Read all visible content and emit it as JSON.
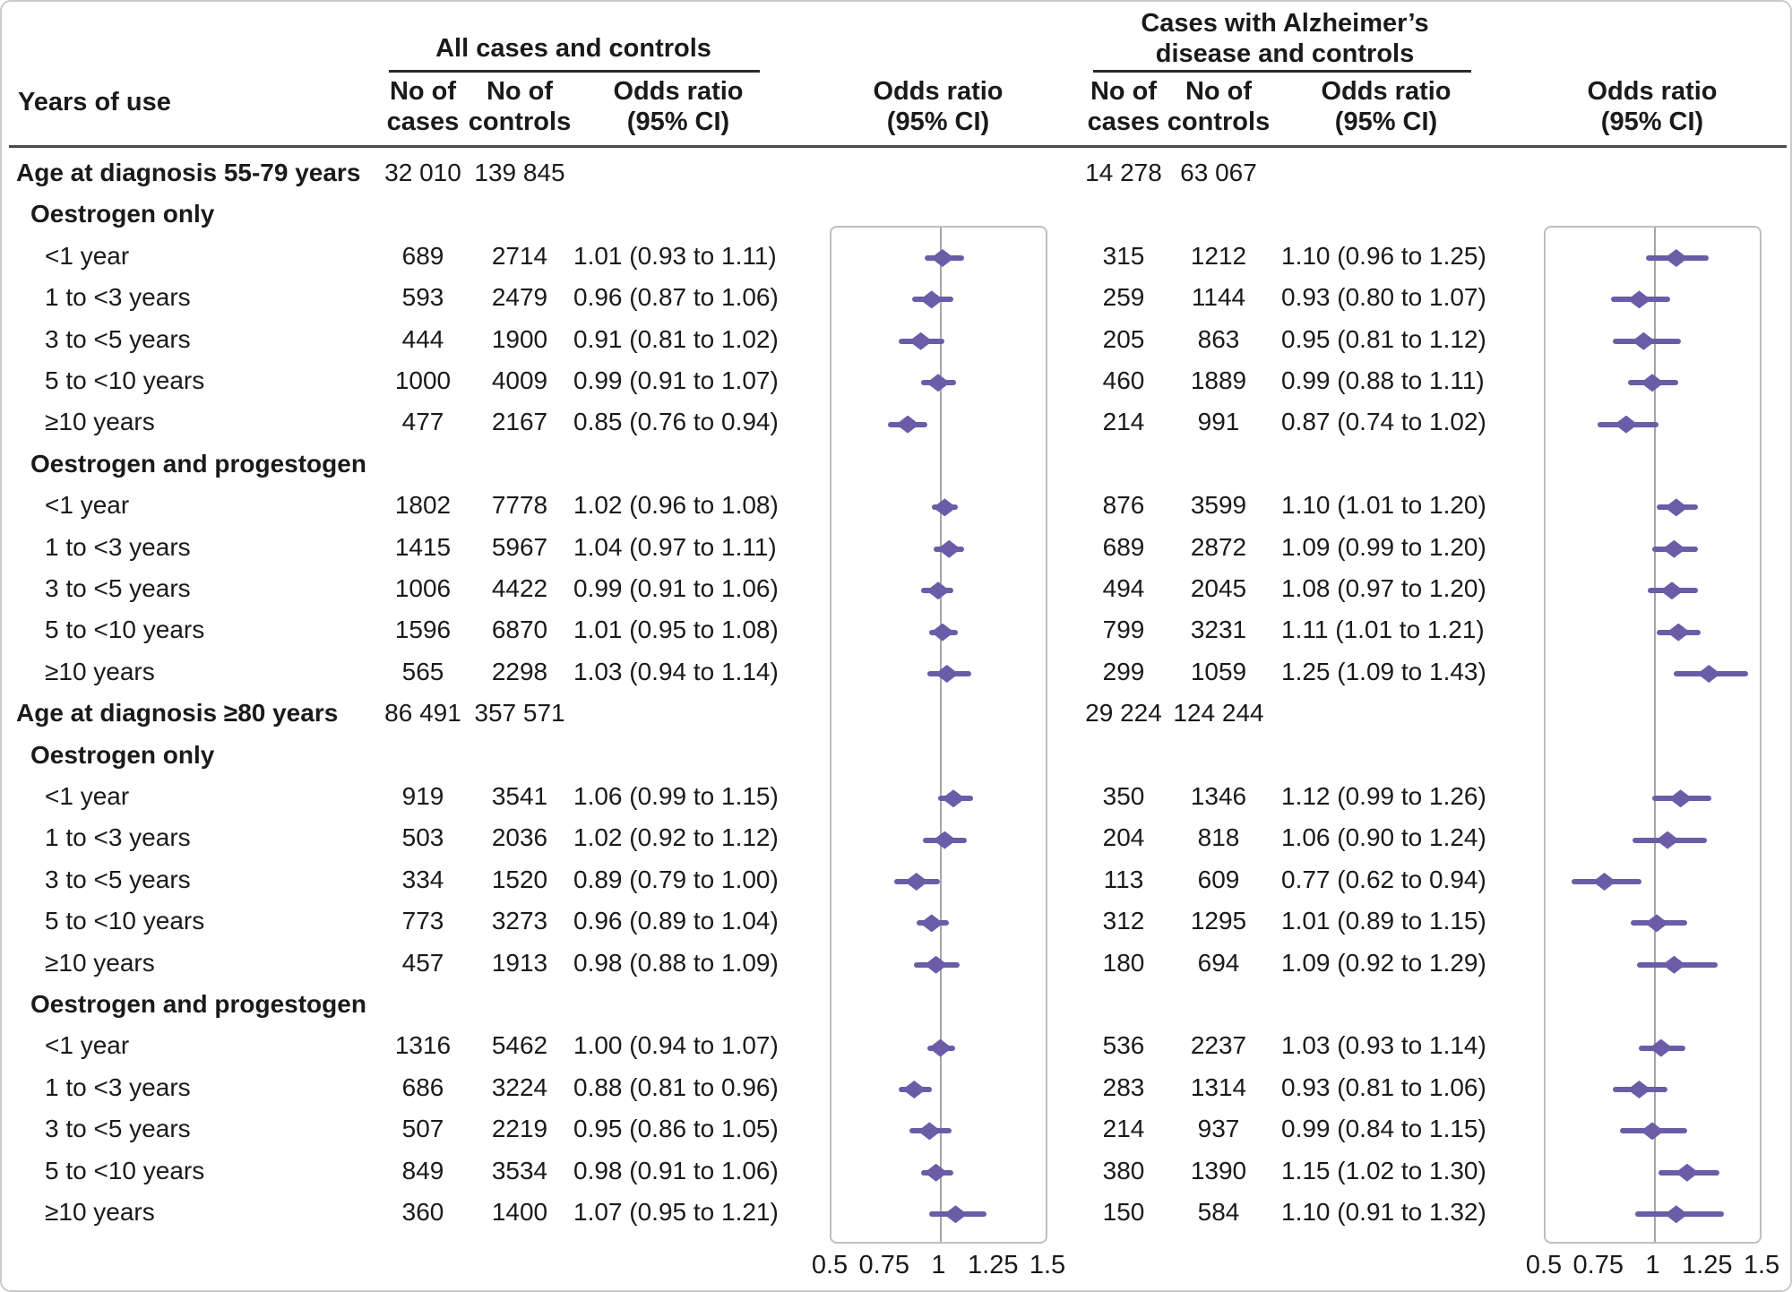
{
  "colors": {
    "diamond": "#6b5ca8",
    "ci": "#6b5ca8",
    "ref_line": "#a3a5a8",
    "box_border": "#bdbfc1",
    "rule": "#4a4a4c",
    "text": "#1a1a1a"
  },
  "header": {
    "years_of_use": "Years of use",
    "group_all": "All cases and controls",
    "group_alz_line1": "Cases with Alzheimer’s",
    "group_alz_line2": "disease and controls",
    "cases_line1": "No of",
    "cases_line2": "cases",
    "controls_line1": "No of",
    "controls_line2": "controls",
    "or_line1": "Odds ratio",
    "or_line2": "(95% CI)"
  },
  "chart_data": {
    "type": "forest",
    "title": "",
    "xlabel": "Odds ratio (95% CI)",
    "axis_range": [
      0.5,
      1.5
    ],
    "reference_line": 1,
    "axis_ticks": [
      0.5,
      0.75,
      1,
      1.25,
      1.5
    ],
    "axis_tick_labels": [
      "0.5",
      "0.75",
      "1",
      "1.25",
      "1.5"
    ],
    "series_names": [
      "All cases and controls",
      "Cases with Alzheimer’s disease and controls"
    ],
    "rows": [
      {
        "kind": "section",
        "label": "Age at diagnosis 55-79 years",
        "all": {
          "cases": "32 010",
          "controls": "139 845"
        },
        "alz": {
          "cases": "14 278",
          "controls": "63 067"
        }
      },
      {
        "kind": "subhead",
        "label": "Oestrogen only"
      },
      {
        "kind": "data",
        "label": "<1 year",
        "all": {
          "cases": "689",
          "controls": "2714",
          "or": 1.01,
          "lo": 0.93,
          "hi": 1.11,
          "text": "1.01 (0.93 to 1.11)"
        },
        "alz": {
          "cases": "315",
          "controls": "1212",
          "or": 1.1,
          "lo": 0.96,
          "hi": 1.25,
          "text": "1.10 (0.96 to 1.25)"
        }
      },
      {
        "kind": "data",
        "label": "1 to <3 years",
        "all": {
          "cases": "593",
          "controls": "2479",
          "or": 0.96,
          "lo": 0.87,
          "hi": 1.06,
          "text": "0.96 (0.87 to 1.06)"
        },
        "alz": {
          "cases": "259",
          "controls": "1144",
          "or": 0.93,
          "lo": 0.8,
          "hi": 1.07,
          "text": "0.93 (0.80 to 1.07)"
        }
      },
      {
        "kind": "data",
        "label": "3 to <5 years",
        "all": {
          "cases": "444",
          "controls": "1900",
          "or": 0.91,
          "lo": 0.81,
          "hi": 1.02,
          "text": "0.91 (0.81 to 1.02)"
        },
        "alz": {
          "cases": "205",
          "controls": "863",
          "or": 0.95,
          "lo": 0.81,
          "hi": 1.12,
          "text": "0.95 (0.81 to 1.12)"
        }
      },
      {
        "kind": "data",
        "label": "5 to <10 years",
        "all": {
          "cases": "1000",
          "controls": "4009",
          "or": 0.99,
          "lo": 0.91,
          "hi": 1.07,
          "text": "0.99 (0.91 to 1.07)"
        },
        "alz": {
          "cases": "460",
          "controls": "1889",
          "or": 0.99,
          "lo": 0.88,
          "hi": 1.11,
          "text": "0.99 (0.88 to 1.11)"
        }
      },
      {
        "kind": "data",
        "label": "≥10 years",
        "all": {
          "cases": "477",
          "controls": "2167",
          "or": 0.85,
          "lo": 0.76,
          "hi": 0.94,
          "text": "0.85 (0.76 to 0.94)"
        },
        "alz": {
          "cases": "214",
          "controls": "991",
          "or": 0.87,
          "lo": 0.74,
          "hi": 1.02,
          "text": "0.87 (0.74 to 1.02)"
        }
      },
      {
        "kind": "subhead",
        "label": "Oestrogen and progestogen"
      },
      {
        "kind": "data",
        "label": "<1 year",
        "all": {
          "cases": "1802",
          "controls": "7778",
          "or": 1.02,
          "lo": 0.96,
          "hi": 1.08,
          "text": "1.02 (0.96 to 1.08)"
        },
        "alz": {
          "cases": "876",
          "controls": "3599",
          "or": 1.1,
          "lo": 1.01,
          "hi": 1.2,
          "text": "1.10 (1.01 to 1.20)"
        }
      },
      {
        "kind": "data",
        "label": "1 to <3 years",
        "all": {
          "cases": "1415",
          "controls": "5967",
          "or": 1.04,
          "lo": 0.97,
          "hi": 1.11,
          "text": "1.04 (0.97 to 1.11)"
        },
        "alz": {
          "cases": "689",
          "controls": "2872",
          "or": 1.09,
          "lo": 0.99,
          "hi": 1.2,
          "text": "1.09 (0.99 to 1.20)"
        }
      },
      {
        "kind": "data",
        "label": "3 to <5 years",
        "all": {
          "cases": "1006",
          "controls": "4422",
          "or": 0.99,
          "lo": 0.91,
          "hi": 1.06,
          "text": "0.99 (0.91 to 1.06)"
        },
        "alz": {
          "cases": "494",
          "controls": "2045",
          "or": 1.08,
          "lo": 0.97,
          "hi": 1.2,
          "text": "1.08 (0.97 to 1.20)"
        }
      },
      {
        "kind": "data",
        "label": "5 to <10 years",
        "all": {
          "cases": "1596",
          "controls": "6870",
          "or": 1.01,
          "lo": 0.95,
          "hi": 1.08,
          "text": "1.01 (0.95 to 1.08)"
        },
        "alz": {
          "cases": "799",
          "controls": "3231",
          "or": 1.11,
          "lo": 1.01,
          "hi": 1.21,
          "text": "1.11 (1.01 to 1.21)"
        }
      },
      {
        "kind": "data",
        "label": "≥10 years",
        "all": {
          "cases": "565",
          "controls": "2298",
          "or": 1.03,
          "lo": 0.94,
          "hi": 1.14,
          "text": "1.03 (0.94 to 1.14)"
        },
        "alz": {
          "cases": "299",
          "controls": "1059",
          "or": 1.25,
          "lo": 1.09,
          "hi": 1.43,
          "text": "1.25 (1.09 to 1.43)"
        }
      },
      {
        "kind": "section",
        "label": "Age at diagnosis ≥80 years",
        "all": {
          "cases": "86 491",
          "controls": "357 571"
        },
        "alz": {
          "cases": "29 224",
          "controls": "124 244"
        }
      },
      {
        "kind": "subhead",
        "label": "Oestrogen only"
      },
      {
        "kind": "data",
        "label": "<1 year",
        "all": {
          "cases": "919",
          "controls": "3541",
          "or": 1.06,
          "lo": 0.99,
          "hi": 1.15,
          "text": "1.06 (0.99 to 1.15)"
        },
        "alz": {
          "cases": "350",
          "controls": "1346",
          "or": 1.12,
          "lo": 0.99,
          "hi": 1.26,
          "text": "1.12 (0.99 to 1.26)"
        }
      },
      {
        "kind": "data",
        "label": "1 to <3 years",
        "all": {
          "cases": "503",
          "controls": "2036",
          "or": 1.02,
          "lo": 0.92,
          "hi": 1.12,
          "text": "1.02 (0.92 to 1.12)"
        },
        "alz": {
          "cases": "204",
          "controls": "818",
          "or": 1.06,
          "lo": 0.9,
          "hi": 1.24,
          "text": "1.06 (0.90 to 1.24)"
        }
      },
      {
        "kind": "data",
        "label": "3 to <5 years",
        "all": {
          "cases": "334",
          "controls": "1520",
          "or": 0.89,
          "lo": 0.79,
          "hi": 1.0,
          "text": "0.89 (0.79 to 1.00)"
        },
        "alz": {
          "cases": "113",
          "controls": "609",
          "or": 0.77,
          "lo": 0.62,
          "hi": 0.94,
          "text": "0.77 (0.62 to 0.94)"
        }
      },
      {
        "kind": "data",
        "label": "5 to <10 years",
        "all": {
          "cases": "773",
          "controls": "3273",
          "or": 0.96,
          "lo": 0.89,
          "hi": 1.04,
          "text": "0.96 (0.89 to 1.04)"
        },
        "alz": {
          "cases": "312",
          "controls": "1295",
          "or": 1.01,
          "lo": 0.89,
          "hi": 1.15,
          "text": "1.01 (0.89 to 1.15)"
        }
      },
      {
        "kind": "data",
        "label": "≥10 years",
        "all": {
          "cases": "457",
          "controls": "1913",
          "or": 0.98,
          "lo": 0.88,
          "hi": 1.09,
          "text": "0.98 (0.88 to 1.09)"
        },
        "alz": {
          "cases": "180",
          "controls": "694",
          "or": 1.09,
          "lo": 0.92,
          "hi": 1.29,
          "text": "1.09 (0.92 to 1.29)"
        }
      },
      {
        "kind": "subhead",
        "label": "Oestrogen and progestogen"
      },
      {
        "kind": "data",
        "label": "<1 year",
        "all": {
          "cases": "1316",
          "controls": "5462",
          "or": 1.0,
          "lo": 0.94,
          "hi": 1.07,
          "text": "1.00 (0.94 to 1.07)"
        },
        "alz": {
          "cases": "536",
          "controls": "2237",
          "or": 1.03,
          "lo": 0.93,
          "hi": 1.14,
          "text": "1.03 (0.93 to 1.14)"
        }
      },
      {
        "kind": "data",
        "label": "1 to <3 years",
        "all": {
          "cases": "686",
          "controls": "3224",
          "or": 0.88,
          "lo": 0.81,
          "hi": 0.96,
          "text": "0.88 (0.81 to 0.96)"
        },
        "alz": {
          "cases": "283",
          "controls": "1314",
          "or": 0.93,
          "lo": 0.81,
          "hi": 1.06,
          "text": "0.93 (0.81 to 1.06)"
        }
      },
      {
        "kind": "data",
        "label": "3 to <5 years",
        "all": {
          "cases": "507",
          "controls": "2219",
          "or": 0.95,
          "lo": 0.86,
          "hi": 1.05,
          "text": "0.95 (0.86 to 1.05)"
        },
        "alz": {
          "cases": "214",
          "controls": "937",
          "or": 0.99,
          "lo": 0.84,
          "hi": 1.15,
          "text": "0.99 (0.84 to 1.15)"
        }
      },
      {
        "kind": "data",
        "label": "5 to <10 years",
        "all": {
          "cases": "849",
          "controls": "3534",
          "or": 0.98,
          "lo": 0.91,
          "hi": 1.06,
          "text": "0.98 (0.91 to 1.06)"
        },
        "alz": {
          "cases": "380",
          "controls": "1390",
          "or": 1.15,
          "lo": 1.02,
          "hi": 1.3,
          "text": "1.15 (1.02 to 1.30)"
        }
      },
      {
        "kind": "data",
        "label": "≥10 years",
        "all": {
          "cases": "360",
          "controls": "1400",
          "or": 1.07,
          "lo": 0.95,
          "hi": 1.21,
          "text": "1.07 (0.95 to 1.21)"
        },
        "alz": {
          "cases": "150",
          "controls": "584",
          "or": 1.1,
          "lo": 0.91,
          "hi": 1.32,
          "text": "1.10 (0.91 to 1.32)"
        }
      }
    ]
  }
}
